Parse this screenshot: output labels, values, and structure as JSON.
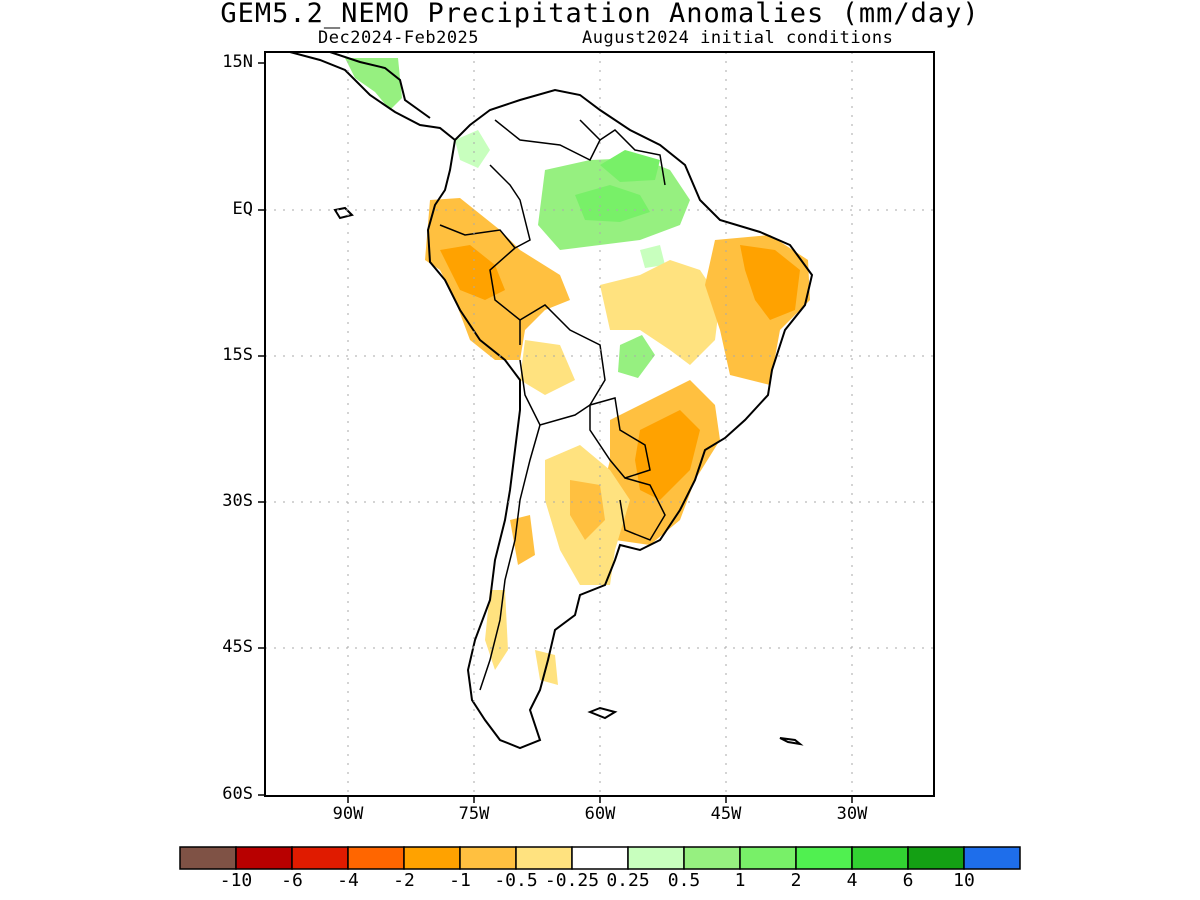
{
  "title": "GEM5.2_NEMO Precipitation Anomalies (mm/day)",
  "subtitle_left": "Dec2024-Feb2025",
  "subtitle_right": "August2024 initial conditions",
  "map": {
    "region": "South America",
    "lat_labels": [
      "15N",
      "EQ",
      "15S",
      "30S",
      "45S",
      "60S"
    ],
    "lon_labels": [
      "90W",
      "75W",
      "60W",
      "45W",
      "30W"
    ],
    "gridlines": "dotted"
  },
  "colorbar": {
    "labels": [
      "-10",
      "-6",
      "-4",
      "-2",
      "-1",
      "-0.5",
      "-0.25",
      "0.25",
      "0.5",
      "1",
      "2",
      "4",
      "6",
      "10"
    ],
    "colors": [
      "#7f5245",
      "#b80000",
      "#e01b00",
      "#ff6600",
      "#ffa200",
      "#ffc040",
      "#ffe27f",
      "#ffffff",
      "#c8ffbe",
      "#96f080",
      "#78f068",
      "#50f050",
      "#32d232",
      "#14a014",
      "#1e6eeb"
    ]
  }
}
